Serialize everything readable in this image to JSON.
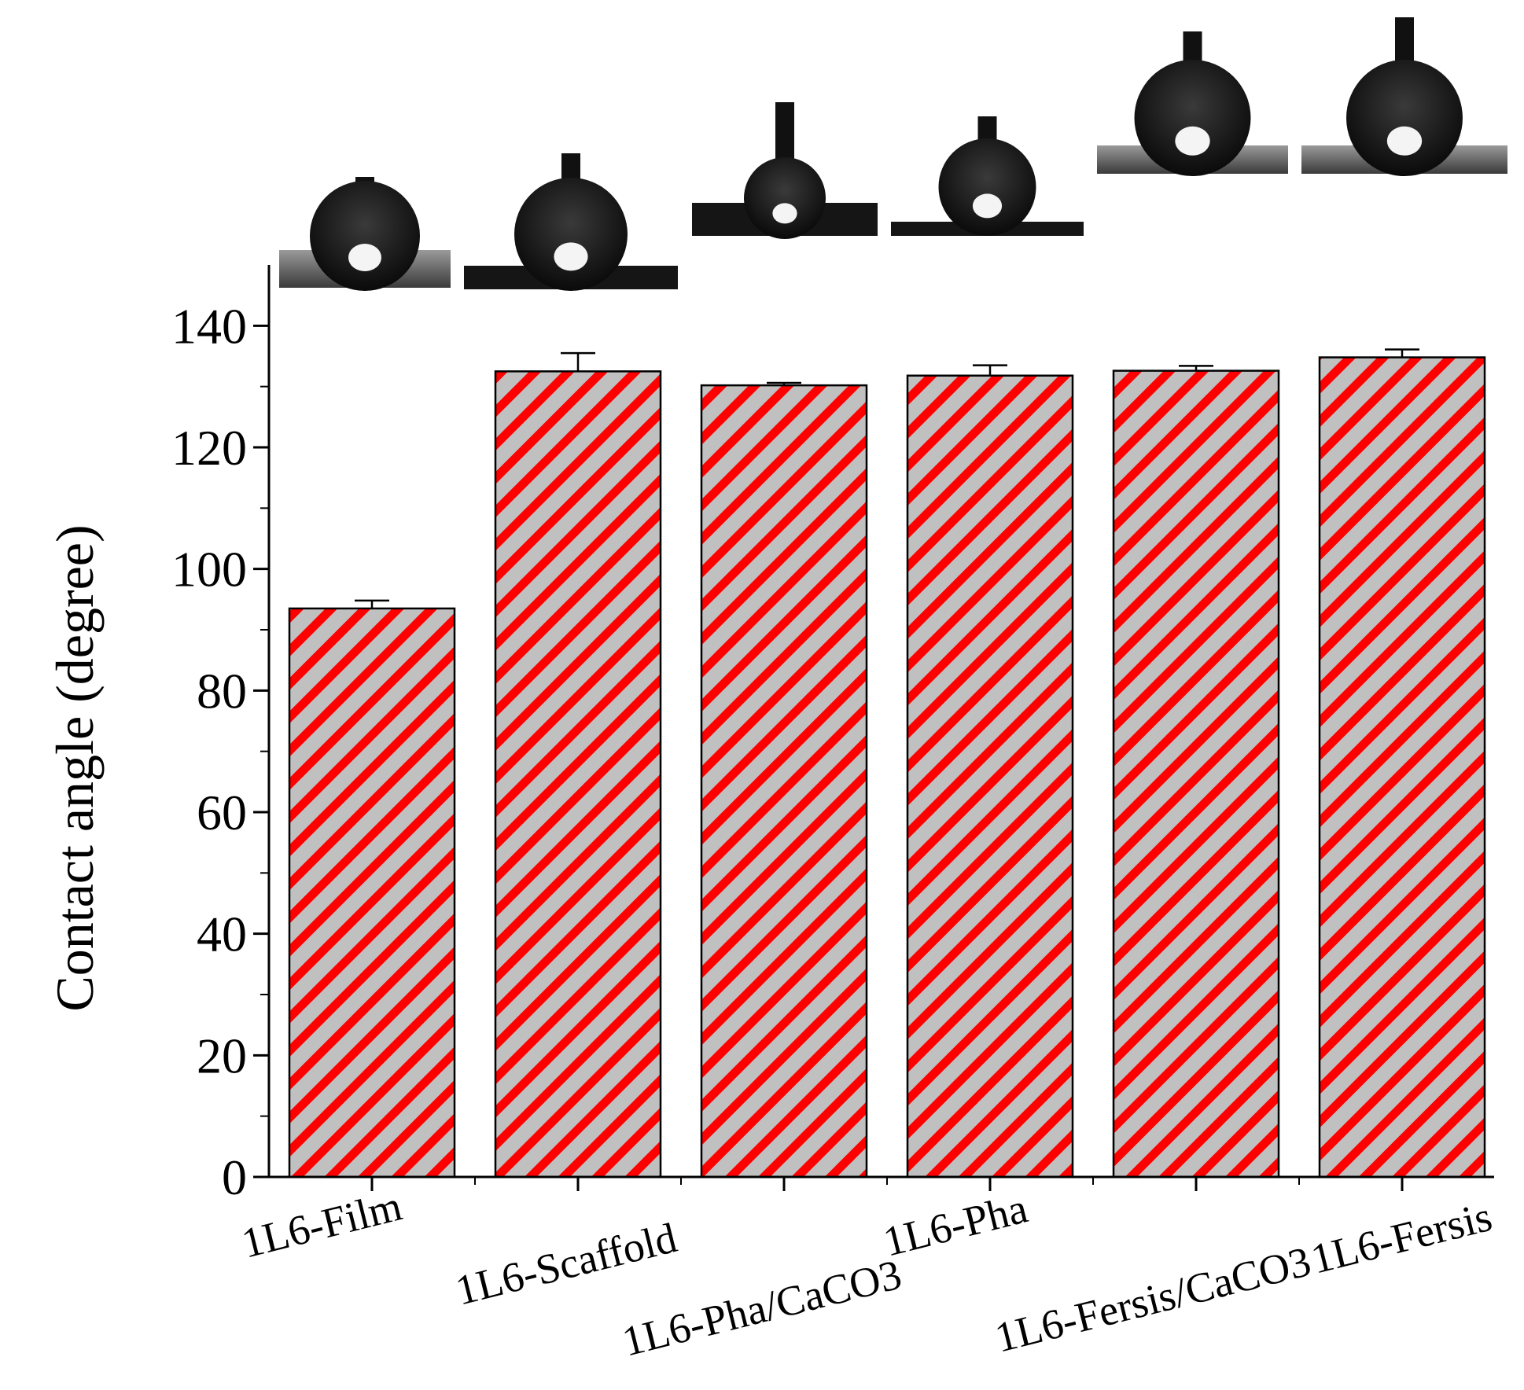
{
  "chart_data": {
    "type": "bar",
    "title": "",
    "xlabel": "",
    "ylabel": "Contact angle (degree)",
    "ylim": [
      0,
      150
    ],
    "yticks": [
      0,
      20,
      40,
      60,
      80,
      100,
      120,
      140
    ],
    "ytick_labels": [
      "0",
      "20",
      "40",
      "60",
      "80",
      "100",
      "120",
      "140"
    ],
    "categories": [
      "1L6-Film",
      "1L6-Scaffold",
      "1L6-Pha/CaCO3",
      "1L6-Pha",
      "1L6-Fersis/CaCO3",
      "1L6-Fersis"
    ],
    "values": [
      93.5,
      132.5,
      130.2,
      131.8,
      132.6,
      134.8
    ],
    "errors": [
      1.3,
      3.0,
      0.4,
      1.7,
      0.8,
      1.3
    ],
    "grid": false,
    "legend": "none",
    "bar_pattern": "diagonal-hatch",
    "colors": {
      "bar_fill": "#c0c0c0",
      "hatch": "#ff0000",
      "outline": "#000000"
    },
    "insets": [
      "droplet-photo",
      "droplet-photo",
      "droplet-photo",
      "droplet-photo",
      "droplet-photo",
      "droplet-photo"
    ]
  }
}
